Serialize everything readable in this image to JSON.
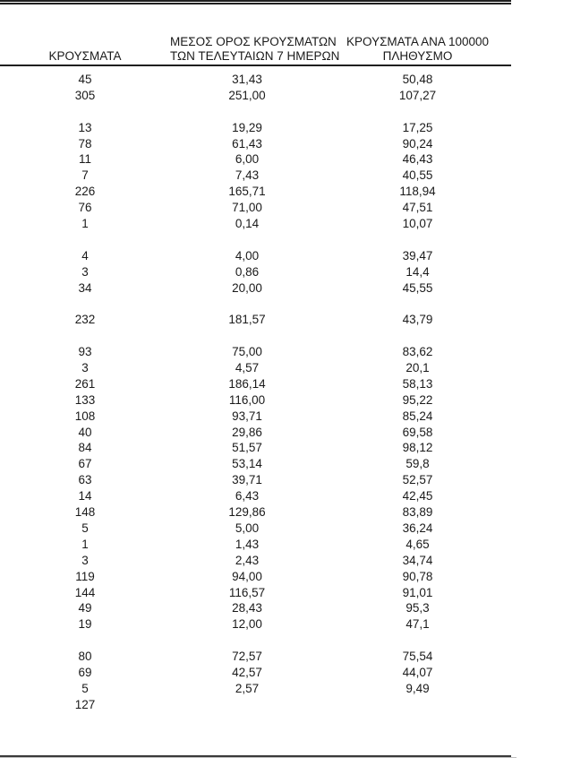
{
  "chart_data": {
    "type": "table",
    "title": "",
    "decimal_separator": ",",
    "column_ids": [
      "cases",
      "avg_7day",
      "per_100k"
    ],
    "columns": [
      {
        "id": "cases",
        "header_lines": [
          "ΚΡΟΥΣΜΑΤΑ",
          ""
        ]
      },
      {
        "id": "avg_7day",
        "header_lines": [
          "ΜΕΣΟΣ ΟΡΟΣ ΚΡΟΥΣΜΑΤΩΝ",
          "ΤΩΝ ΤΕΛΕΥΤΑΙΩΝ 7 ΗΜΕΡΩΝ"
        ]
      },
      {
        "id": "per_100k",
        "header_lines": [
          "ΚΡΟΥΣΜΑΤΑ ΑΝΑ 100000",
          "ΠΛΗΘΥΣΜΟ"
        ]
      }
    ],
    "rows": [
      [
        "45",
        "31,43",
        "50,48"
      ],
      [
        "305",
        "251,00",
        "107,27"
      ],
      [
        "",
        "",
        ""
      ],
      [
        "13",
        "19,29",
        "17,25"
      ],
      [
        "78",
        "61,43",
        "90,24"
      ],
      [
        "11",
        "6,00",
        "46,43"
      ],
      [
        "7",
        "7,43",
        "40,55"
      ],
      [
        "226",
        "165,71",
        "118,94"
      ],
      [
        "76",
        "71,00",
        "47,51"
      ],
      [
        "1",
        "0,14",
        "10,07"
      ],
      [
        "",
        "",
        ""
      ],
      [
        "4",
        "4,00",
        "39,47"
      ],
      [
        "3",
        "0,86",
        "14,4"
      ],
      [
        "34",
        "20,00",
        "45,55"
      ],
      [
        "",
        "",
        ""
      ],
      [
        "232",
        "181,57",
        "43,79"
      ],
      [
        "",
        "",
        ""
      ],
      [
        "93",
        "75,00",
        "83,62"
      ],
      [
        "3",
        "4,57",
        "20,1"
      ],
      [
        "261",
        "186,14",
        "58,13"
      ],
      [
        "133",
        "116,00",
        "95,22"
      ],
      [
        "108",
        "93,71",
        "85,24"
      ],
      [
        "40",
        "29,86",
        "69,58"
      ],
      [
        "84",
        "51,57",
        "98,12"
      ],
      [
        "67",
        "53,14",
        "59,8"
      ],
      [
        "63",
        "39,71",
        "52,57"
      ],
      [
        "14",
        "6,43",
        "42,45"
      ],
      [
        "148",
        "129,86",
        "83,89"
      ],
      [
        "5",
        "5,00",
        "36,24"
      ],
      [
        "1",
        "1,43",
        "4,65"
      ],
      [
        "3",
        "2,43",
        "34,74"
      ],
      [
        "119",
        "94,00",
        "90,78"
      ],
      [
        "144",
        "116,57",
        "91,01"
      ],
      [
        "49",
        "28,43",
        "95,3"
      ],
      [
        "19",
        "12,00",
        "47,1"
      ],
      [
        "",
        "",
        ""
      ],
      [
        "80",
        "72,57",
        "75,54"
      ],
      [
        "69",
        "42,57",
        "44,07"
      ],
      [
        "5",
        "2,57",
        "9,49"
      ],
      [
        "127",
        "",
        ""
      ]
    ],
    "layout": {
      "text_color": "#1a1a1a",
      "rule_color": "#1f1f1f",
      "background": "#ffffff"
    }
  }
}
